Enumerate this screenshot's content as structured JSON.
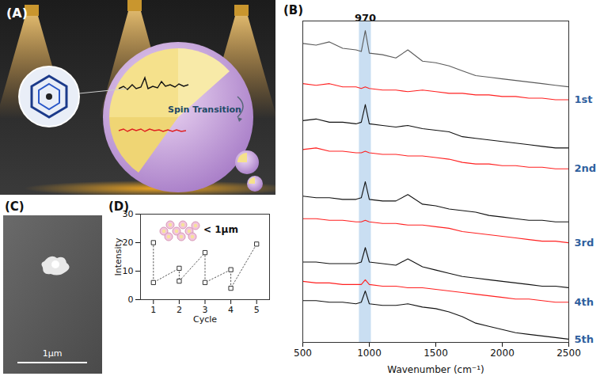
{
  "chart_data": [
    {
      "type": "line",
      "panel": "(B)",
      "xlabel": "Wavenumber (cm⁻¹)",
      "xlim": [
        500,
        2500
      ],
      "xticks": [
        500,
        1000,
        1500,
        2000,
        2500
      ],
      "ylim": [
        0,
        100
      ],
      "tick_labels": "x",
      "x": [
        500,
        600,
        700,
        800,
        900,
        940,
        970,
        1000,
        1100,
        1200,
        1290,
        1400,
        1500,
        1600,
        1700,
        1800,
        1900,
        2000,
        2100,
        2200,
        2300,
        2400,
        2500
      ],
      "band": {
        "peak": 970,
        "range": [
          925,
          1015
        ],
        "color": "#c9def2"
      },
      "groups": [
        {
          "label": "1st",
          "series": [
            {
              "color": "#5a5a5a",
              "values": [
                93,
                92.5,
                93.5,
                91.5,
                91,
                90.5,
                97,
                90,
                89.5,
                88.5,
                91,
                87.5,
                87,
                86,
                84.5,
                83,
                82.5,
                82,
                81.5,
                81,
                80.5,
                80,
                79.5
              ]
            },
            {
              "color": "#ff2020",
              "values": [
                80.5,
                80,
                80.5,
                79.5,
                79.5,
                79,
                79.5,
                79,
                78.5,
                78.5,
                78,
                78.5,
                78,
                77.5,
                77.5,
                77,
                77,
                76.5,
                76.5,
                76,
                76,
                75.5,
                75.5
              ]
            }
          ]
        },
        {
          "label": "2nd",
          "series": [
            {
              "color": "#111111",
              "values": [
                69,
                69.5,
                68.5,
                68.5,
                68,
                68.5,
                74,
                68,
                67.5,
                67,
                67.5,
                66.5,
                66,
                65.5,
                64,
                63.5,
                63,
                62.5,
                62,
                61.5,
                61,
                60.5,
                60.5
              ]
            },
            {
              "color": "#ff2020",
              "values": [
                60,
                60.5,
                59.5,
                59.5,
                59,
                59,
                59.5,
                59,
                58.5,
                58.5,
                58,
                58,
                57.5,
                57,
                56,
                55.5,
                55.5,
                55,
                55,
                54.5,
                54.5,
                54,
                54
              ]
            }
          ]
        },
        {
          "label": "3rd",
          "series": [
            {
              "color": "#111111",
              "values": [
                45.5,
                45,
                45,
                44.5,
                44.5,
                45,
                50,
                44.5,
                44,
                44,
                46,
                43,
                42.5,
                41.5,
                41,
                40.5,
                39.5,
                39,
                38.5,
                38,
                38,
                37.5,
                37.5
              ]
            },
            {
              "color": "#ff2020",
              "values": [
                38.5,
                38.5,
                38,
                38,
                37.5,
                37.5,
                38,
                37.5,
                37,
                37,
                36.5,
                36.5,
                36,
                35.5,
                34.5,
                34,
                33.5,
                33,
                32.5,
                32,
                31.5,
                31.5,
                31
              ]
            }
          ]
        },
        {
          "label": "4th",
          "series": [
            {
              "color": "#111111",
              "values": [
                25,
                25,
                24.5,
                24.5,
                24.5,
                25,
                29.5,
                25,
                24.5,
                24,
                26,
                23.5,
                22.5,
                21.5,
                20.5,
                20,
                19.5,
                19,
                18.5,
                18,
                17.5,
                17.5,
                17
              ]
            },
            {
              "color": "#ff2020",
              "values": [
                19,
                18.5,
                18.5,
                18,
                18,
                18,
                19.5,
                18,
                17.5,
                17.5,
                17,
                17,
                16.5,
                16,
                15.5,
                15,
                14.5,
                14,
                13.5,
                13.5,
                13,
                12.5,
                12.5
              ]
            }
          ]
        },
        {
          "label": "5th",
          "series": [
            {
              "color": "#111111",
              "values": [
                13,
                13,
                12.5,
                12.5,
                12,
                12.5,
                16,
                12,
                11.5,
                11.5,
                12,
                11,
                10.5,
                9.5,
                8,
                6,
                5,
                4,
                3,
                2.5,
                2,
                1.5,
                1
              ]
            }
          ]
        }
      ]
    },
    {
      "type": "line",
      "panel": "(D)",
      "xlabel": "Cycle",
      "ylabel": "Intensity",
      "annotation": "< 1μm",
      "xlim": [
        0.5,
        5.5
      ],
      "xticks": [
        1,
        2,
        3,
        4,
        5
      ],
      "ylim": [
        0,
        30
      ],
      "yticks": [
        0,
        10,
        20,
        30
      ],
      "x": [
        1,
        1,
        2,
        2,
        3,
        3,
        4,
        4,
        5
      ],
      "values": [
        20,
        6,
        11,
        6.5,
        16.5,
        6,
        10.5,
        4,
        19.5
      ],
      "color": "#555555",
      "marker": "square",
      "line_style": "dotted"
    }
  ],
  "illustration": {
    "panel": "(A)",
    "text": "Spin Transition"
  },
  "micrograph": {
    "panel": "(C)",
    "scale_bar": "1μm"
  }
}
